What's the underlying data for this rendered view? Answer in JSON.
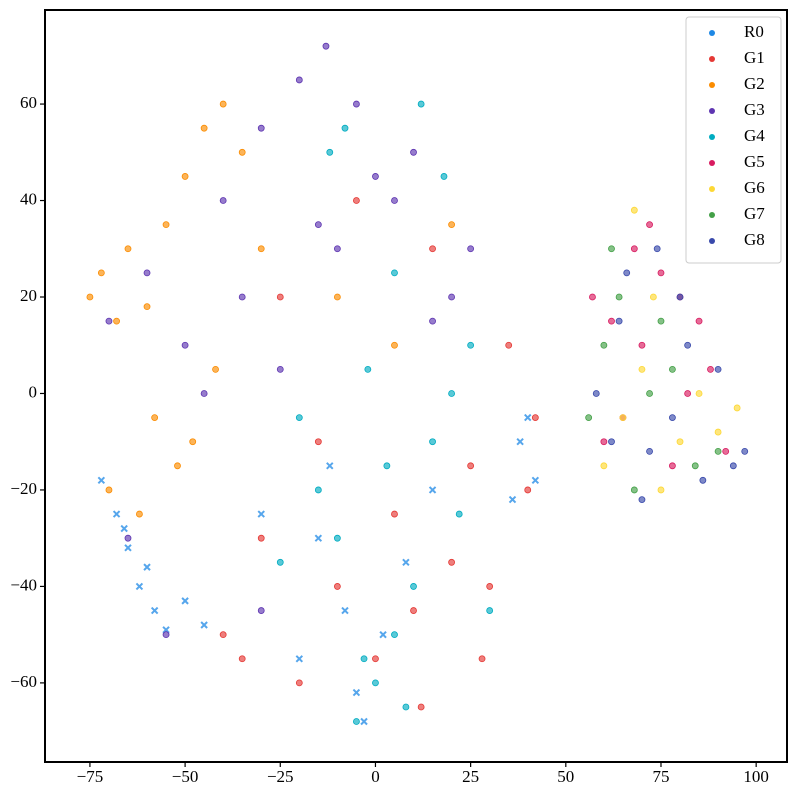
{
  "chart_data": {
    "type": "scatter",
    "xlim": [
      -86.8,
      108.1
    ],
    "ylim": [
      -76.4,
      79.5
    ],
    "xticks": [
      {
        "value": -75,
        "label": "−75"
      },
      {
        "value": -50,
        "label": "−50"
      },
      {
        "value": -25,
        "label": "−25"
      },
      0,
      25,
      50,
      75,
      100
    ],
    "yticks": [
      {
        "value": -60,
        "label": "−60"
      },
      {
        "value": -40,
        "label": "−40"
      },
      {
        "value": -20,
        "label": "−20"
      },
      0,
      20,
      40,
      60
    ],
    "legend": "upper right",
    "series": [
      {
        "name": "R0",
        "color": "#1e88e5",
        "marker": "x",
        "x": [
          -72,
          -68,
          -65,
          -62,
          -58,
          -55,
          -50,
          -66,
          -60,
          -45,
          -15,
          -8,
          -20,
          -5,
          2,
          8,
          38,
          42,
          36,
          40,
          -12,
          -30,
          -3,
          15
        ],
        "y": [
          -18,
          -25,
          -32,
          -40,
          -45,
          -49,
          -43,
          -28,
          -36,
          -48,
          -30,
          -45,
          -55,
          -62,
          -50,
          -35,
          -10,
          -18,
          -22,
          -5,
          -15,
          -25,
          -68,
          -20
        ]
      },
      {
        "name": "G1",
        "color": "#e53935",
        "marker": "o",
        "x": [
          -40,
          -30,
          -20,
          -10,
          0,
          10,
          20,
          30,
          40,
          -15,
          5,
          25,
          35,
          -25,
          15,
          -5,
          28,
          42,
          -35,
          12
        ],
        "y": [
          -50,
          -30,
          -60,
          -40,
          -55,
          -45,
          -35,
          -40,
          -20,
          -10,
          -25,
          -15,
          10,
          20,
          30,
          40,
          -55,
          -5,
          -55,
          -65
        ]
      },
      {
        "name": "G2",
        "color": "#fb8c00",
        "marker": "o",
        "x": [
          -75,
          -72,
          -68,
          -65,
          -60,
          -55,
          -50,
          -45,
          -40,
          -35,
          -70,
          -62,
          -48,
          -30,
          -10,
          5,
          20,
          -58,
          -52,
          -42
        ],
        "y": [
          20,
          25,
          15,
          30,
          18,
          35,
          45,
          55,
          60,
          50,
          -20,
          -25,
          -10,
          30,
          20,
          10,
          35,
          -5,
          -15,
          5
        ]
      },
      {
        "name": "G3",
        "color": "#5e35b1",
        "marker": "o",
        "x": [
          -70,
          -60,
          -50,
          -40,
          -30,
          -20,
          -10,
          0,
          10,
          20,
          -45,
          -35,
          -25,
          -15,
          -5,
          5,
          15,
          25,
          -55,
          -65,
          -13,
          -30
        ],
        "y": [
          15,
          25,
          10,
          40,
          55,
          65,
          30,
          45,
          50,
          20,
          0,
          20,
          5,
          35,
          60,
          40,
          15,
          30,
          -50,
          -30,
          72,
          -45
        ]
      },
      {
        "name": "G4",
        "color": "#00acc1",
        "marker": "o",
        "x": [
          -5,
          0,
          5,
          10,
          -10,
          -15,
          15,
          20,
          25,
          -20,
          -2,
          3,
          -8,
          12,
          18,
          -25,
          30,
          22,
          8,
          -3,
          -12,
          5
        ],
        "y": [
          -68,
          -60,
          -50,
          -40,
          -30,
          -20,
          -10,
          0,
          10,
          -5,
          5,
          -15,
          55,
          60,
          45,
          -35,
          -45,
          -25,
          -65,
          -55,
          50,
          25
        ]
      },
      {
        "name": "G5",
        "color": "#d81b60",
        "marker": "o",
        "x": [
          57,
          62,
          68,
          72,
          75,
          80,
          85,
          88,
          65,
          70,
          78,
          60,
          92,
          82
        ],
        "y": [
          20,
          15,
          30,
          35,
          25,
          20,
          15,
          5,
          -5,
          10,
          -15,
          -10,
          -12,
          0
        ]
      },
      {
        "name": "G6",
        "color": "#fdd835",
        "marker": "o",
        "x": [
          60,
          65,
          70,
          75,
          80,
          85,
          90,
          95,
          68,
          73
        ],
        "y": [
          -15,
          -5,
          5,
          -20,
          -10,
          0,
          -8,
          -3,
          38,
          20
        ]
      },
      {
        "name": "G7",
        "color": "#43a047",
        "marker": "o",
        "x": [
          56,
          60,
          64,
          68,
          72,
          78,
          84,
          90,
          62,
          75
        ],
        "y": [
          -5,
          10,
          20,
          -20,
          0,
          5,
          -15,
          -12,
          30,
          15
        ]
      },
      {
        "name": "G8",
        "color": "#3949ab",
        "marker": "o",
        "x": [
          58,
          62,
          66,
          70,
          74,
          78,
          82,
          86,
          90,
          94,
          97,
          64,
          72,
          80
        ],
        "y": [
          0,
          -10,
          25,
          -22,
          30,
          -5,
          10,
          -18,
          5,
          -15,
          -12,
          15,
          -12,
          20
        ]
      }
    ]
  }
}
